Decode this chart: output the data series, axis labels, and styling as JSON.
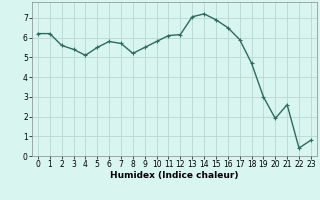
{
  "x": [
    0,
    1,
    2,
    3,
    4,
    5,
    6,
    7,
    8,
    9,
    10,
    11,
    12,
    13,
    14,
    15,
    16,
    17,
    18,
    19,
    20,
    21,
    22,
    23
  ],
  "y": [
    6.2,
    6.2,
    5.6,
    5.4,
    5.1,
    5.5,
    5.8,
    5.7,
    5.2,
    5.5,
    5.8,
    6.1,
    6.15,
    7.05,
    7.2,
    6.9,
    6.5,
    5.9,
    4.7,
    3.0,
    1.9,
    2.6,
    0.4,
    0.8
  ],
  "line_color": "#2e6b5e",
  "marker": "+",
  "marker_size": 3,
  "linewidth": 1.0,
  "bg_color": "#d8f5f0",
  "grid_color": "#b8d8d0",
  "xlabel": "Humidex (Indice chaleur)",
  "xlim": [
    -0.5,
    23.5
  ],
  "ylim": [
    0,
    7.8
  ],
  "yticks": [
    0,
    1,
    2,
    3,
    4,
    5,
    6,
    7
  ],
  "xticks": [
    0,
    1,
    2,
    3,
    4,
    5,
    6,
    7,
    8,
    9,
    10,
    11,
    12,
    13,
    14,
    15,
    16,
    17,
    18,
    19,
    20,
    21,
    22,
    23
  ],
  "label_fontsize": 6.5,
  "tick_fontsize": 5.5
}
